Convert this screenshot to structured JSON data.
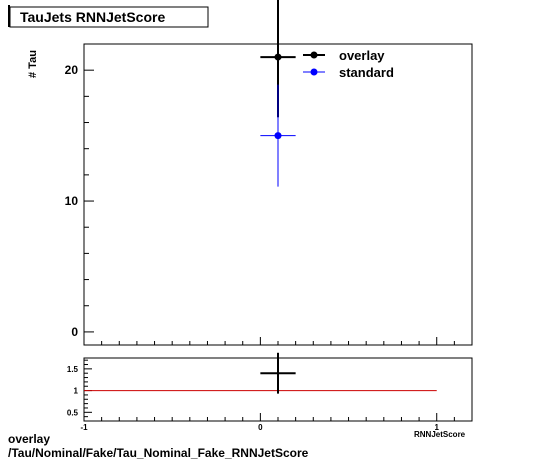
{
  "chart_data": [
    {
      "type": "scatter",
      "title": "TauJets RNNJetScore",
      "ylabel": "# Tau",
      "xlabel": "RNNJetScore",
      "xlim": [
        -1,
        1.2
      ],
      "ylim": [
        -1,
        22
      ],
      "yticks": [
        0,
        10,
        20
      ],
      "legend_position": "top-right",
      "series": [
        {
          "name": "overlay",
          "color": "#000000",
          "points": [
            {
              "x": 0.1,
              "xerr": 0.1,
              "y": 21,
              "yerr_low": 4.6,
              "yerr_high": 4.6
            }
          ]
        },
        {
          "name": "standard",
          "color": "#0000ff",
          "points": [
            {
              "x": 0.1,
              "xerr": 0.1,
              "y": 15,
              "yerr_low": 3.9,
              "yerr_high": 3.9
            }
          ]
        }
      ]
    },
    {
      "type": "scatter",
      "xlim": [
        -1,
        1.2
      ],
      "ylim": [
        0.3,
        1.75
      ],
      "yticks": [
        0.5,
        1,
        1.5
      ],
      "xticks": [
        -1,
        0,
        1
      ],
      "reference_line": {
        "y": 1,
        "x_from": -1,
        "x_to": 1,
        "color": "#cc0000"
      },
      "points": [
        {
          "x": 0.1,
          "xerr": 0.1,
          "y": 1.4,
          "yerr_low": 0.47,
          "yerr_high": 0.47
        }
      ]
    }
  ],
  "footer": {
    "line1": "overlay",
    "line2": "/Tau/Nominal/Fake/Tau_Nominal_Fake_RNNJetScore"
  }
}
